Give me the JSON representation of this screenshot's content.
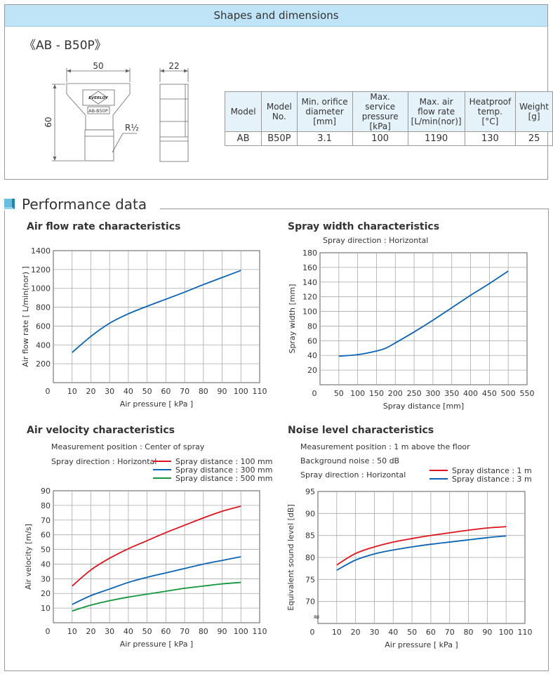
{
  "header": {
    "title": "Shapes and dimensions"
  },
  "model_title": "《AB - B50P》",
  "drawing": {
    "width_dim": "50",
    "height_dim": "60",
    "side_dim": "22",
    "thread_label": "R½",
    "logo_text": "EVERLOY",
    "plate_text": "AB-B50P"
  },
  "spec_table": {
    "headers": [
      "Model",
      "Model No.",
      "Min. orifice diameter [mm]",
      "Max. service pressure [kPa]",
      "Max. air flow rate [L/min(nor)]",
      "Heatproof temp. [°C]",
      "Weight [g]"
    ],
    "header_lines": [
      [
        "Model"
      ],
      [
        "Model",
        "No."
      ],
      [
        "Min. orifice",
        "diameter",
        "[mm]"
      ],
      [
        "Max. service",
        "pressure",
        "[kPa]"
      ],
      [
        "Max. air",
        "flow rate",
        "[L/min(nor)]"
      ],
      [
        "Heatproof",
        "temp.",
        "[°C]"
      ],
      [
        "Weight",
        "[g]"
      ]
    ],
    "rows": [
      [
        "AB",
        "B50P",
        "3.1",
        "100",
        "1190",
        "130",
        "25"
      ]
    ]
  },
  "performance": {
    "title": "Performance data"
  },
  "colors": {
    "red": "#e0141e",
    "blue": "#0a63b4",
    "green": "#14963c",
    "band": "#bfe4f7",
    "accent": "#67bfe0"
  },
  "chart_data": [
    {
      "type": "line",
      "title": "Air flow rate characteristics",
      "notes": [],
      "xlabel": "Air pressure [ kPa ]",
      "ylabel": "Air flow rate [ L/min(nor) ]",
      "xlim": [
        0,
        110
      ],
      "ylim": [
        0,
        1400
      ],
      "xticks": [
        0,
        10,
        20,
        30,
        40,
        50,
        60,
        70,
        80,
        90,
        100,
        110
      ],
      "yticks": [
        200,
        400,
        600,
        800,
        1000,
        1200,
        1400
      ],
      "y_zero_label": false,
      "grid": true,
      "x": [
        10,
        20,
        30,
        40,
        50,
        60,
        70,
        80,
        90,
        100
      ],
      "series": [
        {
          "color": "#0a63b4",
          "values": [
            320,
            490,
            630,
            730,
            810,
            885,
            960,
            1040,
            1115,
            1190
          ]
        }
      ]
    },
    {
      "type": "line",
      "title": "Spray width characteristics",
      "notes": [
        "Spray direction : Horizontal"
      ],
      "xlabel": "Spray distance [mm]",
      "ylabel": "Spray width [mm]",
      "xlim": [
        0,
        550
      ],
      "ylim": [
        0,
        180
      ],
      "xticks": [
        0,
        50,
        100,
        150,
        200,
        250,
        300,
        350,
        400,
        450,
        500,
        550
      ],
      "yticks": [
        20,
        40,
        60,
        80,
        100,
        120,
        140,
        160,
        180
      ],
      "grid": true,
      "x": [
        50,
        100,
        150,
        175,
        200,
        250,
        300,
        350,
        400,
        450,
        500
      ],
      "series": [
        {
          "color": "#0a63b4",
          "values": [
            39,
            41,
            46,
            50,
            57,
            72,
            88,
            105,
            122,
            138,
            155
          ]
        }
      ]
    },
    {
      "type": "line",
      "title": "Air velocity characteristics",
      "notes": [
        "Measurement position : Center of spray",
        "Spray direction : Horizontal"
      ],
      "xlabel": "Air pressure [ kPa ]",
      "ylabel": "Air velocity [m/s]",
      "xlim": [
        0,
        110
      ],
      "ylim": [
        0,
        90
      ],
      "xticks": [
        0,
        10,
        20,
        30,
        40,
        50,
        60,
        70,
        80,
        90,
        100,
        110
      ],
      "yticks": [
        10,
        20,
        30,
        40,
        50,
        60,
        70,
        80,
        90
      ],
      "grid": true,
      "legend": "top-right",
      "x": [
        10,
        20,
        30,
        40,
        50,
        60,
        70,
        80,
        90,
        100
      ],
      "series": [
        {
          "name": "Spray distance : 100 mm",
          "color": "#e0141e",
          "values": [
            25,
            36,
            44,
            50.5,
            56,
            61.5,
            66.5,
            71.5,
            76,
            79.5
          ]
        },
        {
          "name": "Spray distance : 300 mm",
          "color": "#0a63b4",
          "values": [
            12.5,
            18.5,
            23,
            27.5,
            31,
            34,
            37,
            40,
            42.5,
            45
          ]
        },
        {
          "name": "Spray distance : 500 mm",
          "color": "#14963c",
          "values": [
            8,
            12,
            15,
            17.5,
            19.5,
            21.5,
            23.5,
            25,
            26.5,
            27.5
          ]
        }
      ]
    },
    {
      "type": "line",
      "title": "Noise level characteristics",
      "notes": [
        "Measurement position : 1 m above the floor",
        "Background noise : 50 dB",
        "Spray direction : Horizontal"
      ],
      "xlabel": "Air pressure [ kPa ]",
      "ylabel": "Equivalent sound level [dB]",
      "xlim": [
        0,
        110
      ],
      "ylim": [
        65,
        95
      ],
      "axis_break": "≈",
      "xticks": [
        0,
        10,
        20,
        30,
        40,
        50,
        60,
        70,
        80,
        90,
        100,
        110
      ],
      "yticks": [
        70,
        75,
        80,
        85,
        90,
        95
      ],
      "grid": true,
      "legend": "top-right",
      "x": [
        10,
        20,
        30,
        40,
        50,
        60,
        70,
        80,
        90,
        100
      ],
      "series": [
        {
          "name": "Spray distance : 1 m",
          "color": "#e0141e",
          "values": [
            78.3,
            80.9,
            82.4,
            83.5,
            84.3,
            85.0,
            85.6,
            86.2,
            86.7,
            87.0
          ]
        },
        {
          "name": "Spray distance : 3 m",
          "color": "#0a63b4",
          "values": [
            77.1,
            79.4,
            80.8,
            81.7,
            82.4,
            83.0,
            83.5,
            84.0,
            84.5,
            84.9
          ]
        }
      ]
    }
  ]
}
